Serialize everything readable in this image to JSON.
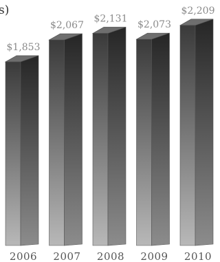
{
  "chart_data": {
    "type": "bar",
    "title_fragment": "s)",
    "categories": [
      "2006",
      "2007",
      "2008",
      "2009",
      "2010"
    ],
    "values": [
      1853,
      2067,
      2131,
      2073,
      2209
    ],
    "value_labels": [
      "$1,853",
      "$2,067",
      "$2,131",
      "$2,073",
      "$2,209"
    ],
    "grid": false,
    "style": "3d-bars",
    "colors": {
      "bar_top_dark": "#3a3a3a",
      "bar_bottom_light": "#b5b5b5",
      "bar_side_dark": "#2a2a2a",
      "bar_side_light": "#8f8f8f",
      "bar_cap": "#6e6e6e",
      "value_text": "#8a8a8a",
      "year_text": "#555555"
    }
  }
}
